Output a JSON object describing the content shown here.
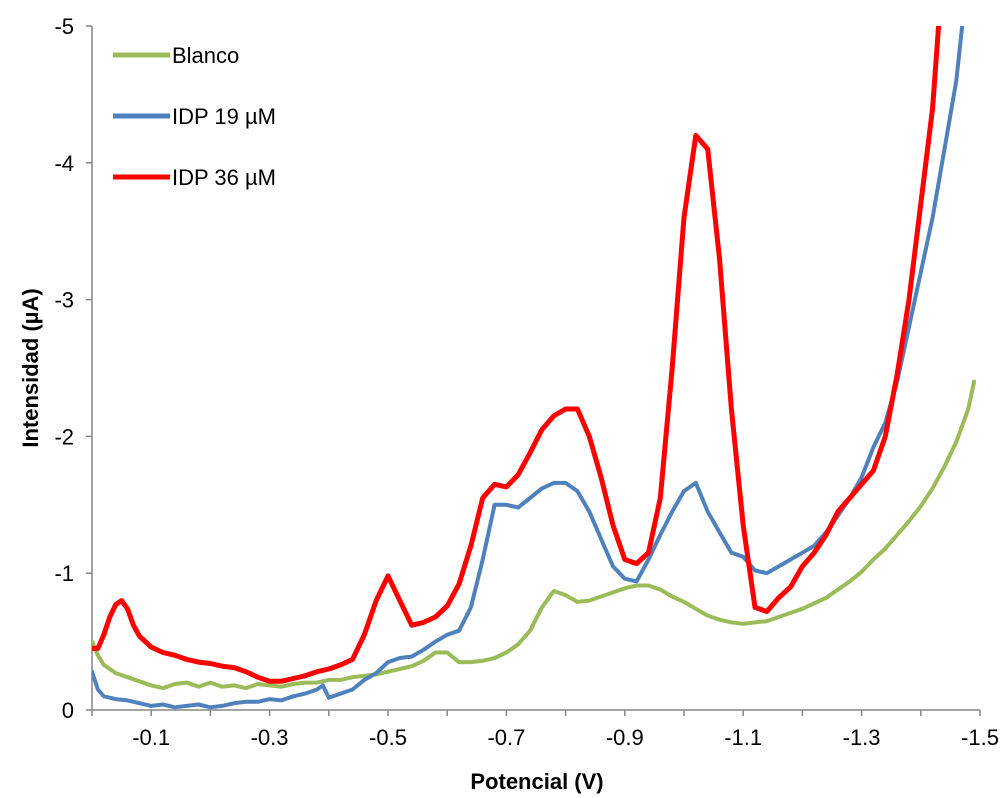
{
  "chart_data": {
    "type": "line",
    "title": "",
    "xlabel": "Potencial (V)",
    "ylabel": "Intensidad (µA)",
    "xlim": [
      0,
      -1.5
    ],
    "ylim": [
      0,
      -5
    ],
    "x_reversed": true,
    "y_reversed": true,
    "xticks": [
      {
        "value": -0.1,
        "label": "-0.1"
      },
      {
        "value": -0.3,
        "label": "-0.3"
      },
      {
        "value": -0.5,
        "label": "-0.5"
      },
      {
        "value": -0.7,
        "label": "-0.7"
      },
      {
        "value": -0.9,
        "label": "-0.9"
      },
      {
        "value": -1.1,
        "label": "-1.1"
      },
      {
        "value": -1.3,
        "label": "-1.3"
      },
      {
        "value": -1.5,
        "label": "-1.5"
      }
    ],
    "yticks": [
      {
        "value": 0,
        "label": "0"
      },
      {
        "value": -1,
        "label": "-1"
      },
      {
        "value": -2,
        "label": "-2"
      },
      {
        "value": -3,
        "label": "-3"
      },
      {
        "value": -4,
        "label": "-4"
      },
      {
        "value": -5,
        "label": "-5"
      }
    ],
    "grid": false,
    "legend_position": "top-left",
    "series": [
      {
        "name": "Blanco",
        "color": "#9bbb59",
        "points": [
          [
            0.0,
            -0.5
          ],
          [
            -0.01,
            -0.4
          ],
          [
            -0.02,
            -0.33
          ],
          [
            -0.04,
            -0.27
          ],
          [
            -0.06,
            -0.24
          ],
          [
            -0.08,
            -0.21
          ],
          [
            -0.1,
            -0.18
          ],
          [
            -0.12,
            -0.16
          ],
          [
            -0.14,
            -0.19
          ],
          [
            -0.16,
            -0.2
          ],
          [
            -0.18,
            -0.17
          ],
          [
            -0.2,
            -0.2
          ],
          [
            -0.22,
            -0.17
          ],
          [
            -0.24,
            -0.18
          ],
          [
            -0.26,
            -0.16
          ],
          [
            -0.28,
            -0.19
          ],
          [
            -0.3,
            -0.18
          ],
          [
            -0.32,
            -0.17
          ],
          [
            -0.34,
            -0.19
          ],
          [
            -0.36,
            -0.2
          ],
          [
            -0.38,
            -0.2
          ],
          [
            -0.4,
            -0.22
          ],
          [
            -0.42,
            -0.22
          ],
          [
            -0.44,
            -0.24
          ],
          [
            -0.46,
            -0.25
          ],
          [
            -0.48,
            -0.26
          ],
          [
            -0.5,
            -0.28
          ],
          [
            -0.52,
            -0.3
          ],
          [
            -0.54,
            -0.32
          ],
          [
            -0.56,
            -0.36
          ],
          [
            -0.58,
            -0.42
          ],
          [
            -0.6,
            -0.42
          ],
          [
            -0.62,
            -0.35
          ],
          [
            -0.64,
            -0.35
          ],
          [
            -0.66,
            -0.36
          ],
          [
            -0.68,
            -0.38
          ],
          [
            -0.7,
            -0.42
          ],
          [
            -0.72,
            -0.48
          ],
          [
            -0.74,
            -0.58
          ],
          [
            -0.76,
            -0.75
          ],
          [
            -0.78,
            -0.87
          ],
          [
            -0.8,
            -0.84
          ],
          [
            -0.82,
            -0.79
          ],
          [
            -0.84,
            -0.8
          ],
          [
            -0.86,
            -0.83
          ],
          [
            -0.88,
            -0.86
          ],
          [
            -0.9,
            -0.89
          ],
          [
            -0.92,
            -0.91
          ],
          [
            -0.94,
            -0.91
          ],
          [
            -0.96,
            -0.88
          ],
          [
            -0.98,
            -0.83
          ],
          [
            -1.0,
            -0.79
          ],
          [
            -1.02,
            -0.74
          ],
          [
            -1.04,
            -0.69
          ],
          [
            -1.06,
            -0.66
          ],
          [
            -1.08,
            -0.64
          ],
          [
            -1.1,
            -0.63
          ],
          [
            -1.12,
            -0.64
          ],
          [
            -1.14,
            -0.65
          ],
          [
            -1.16,
            -0.68
          ],
          [
            -1.18,
            -0.71
          ],
          [
            -1.2,
            -0.74
          ],
          [
            -1.22,
            -0.78
          ],
          [
            -1.24,
            -0.82
          ],
          [
            -1.26,
            -0.88
          ],
          [
            -1.28,
            -0.94
          ],
          [
            -1.3,
            -1.01
          ],
          [
            -1.32,
            -1.1
          ],
          [
            -1.34,
            -1.18
          ],
          [
            -1.36,
            -1.28
          ],
          [
            -1.38,
            -1.38
          ],
          [
            -1.4,
            -1.49
          ],
          [
            -1.42,
            -1.62
          ],
          [
            -1.44,
            -1.78
          ],
          [
            -1.46,
            -1.96
          ],
          [
            -1.48,
            -2.2
          ],
          [
            -1.49,
            -2.4
          ]
        ]
      },
      {
        "name": "IDP 19 µM",
        "color": "#4f81bd",
        "points": [
          [
            0.0,
            -0.28
          ],
          [
            -0.01,
            -0.15
          ],
          [
            -0.02,
            -0.1
          ],
          [
            -0.04,
            -0.08
          ],
          [
            -0.06,
            -0.07
          ],
          [
            -0.08,
            -0.05
          ],
          [
            -0.1,
            -0.03
          ],
          [
            -0.12,
            -0.04
          ],
          [
            -0.14,
            -0.02
          ],
          [
            -0.16,
            -0.03
          ],
          [
            -0.18,
            -0.04
          ],
          [
            -0.2,
            -0.02
          ],
          [
            -0.22,
            -0.03
          ],
          [
            -0.24,
            -0.05
          ],
          [
            -0.26,
            -0.06
          ],
          [
            -0.28,
            -0.06
          ],
          [
            -0.3,
            -0.08
          ],
          [
            -0.32,
            -0.07
          ],
          [
            -0.34,
            -0.1
          ],
          [
            -0.36,
            -0.12
          ],
          [
            -0.38,
            -0.15
          ],
          [
            -0.39,
            -0.18
          ],
          [
            -0.4,
            -0.09
          ],
          [
            -0.42,
            -0.12
          ],
          [
            -0.44,
            -0.15
          ],
          [
            -0.46,
            -0.22
          ],
          [
            -0.48,
            -0.27
          ],
          [
            -0.5,
            -0.35
          ],
          [
            -0.52,
            -0.38
          ],
          [
            -0.54,
            -0.39
          ],
          [
            -0.56,
            -0.44
          ],
          [
            -0.58,
            -0.5
          ],
          [
            -0.6,
            -0.55
          ],
          [
            -0.62,
            -0.58
          ],
          [
            -0.64,
            -0.75
          ],
          [
            -0.66,
            -1.1
          ],
          [
            -0.68,
            -1.5
          ],
          [
            -0.7,
            -1.5
          ],
          [
            -0.72,
            -1.48
          ],
          [
            -0.74,
            -1.55
          ],
          [
            -0.76,
            -1.62
          ],
          [
            -0.78,
            -1.66
          ],
          [
            -0.8,
            -1.66
          ],
          [
            -0.82,
            -1.6
          ],
          [
            -0.84,
            -1.45
          ],
          [
            -0.86,
            -1.25
          ],
          [
            -0.88,
            -1.05
          ],
          [
            -0.9,
            -0.96
          ],
          [
            -0.92,
            -0.94
          ],
          [
            -0.94,
            -1.1
          ],
          [
            -0.96,
            -1.28
          ],
          [
            -0.98,
            -1.45
          ],
          [
            -1.0,
            -1.6
          ],
          [
            -1.02,
            -1.66
          ],
          [
            -1.04,
            -1.45
          ],
          [
            -1.06,
            -1.3
          ],
          [
            -1.08,
            -1.15
          ],
          [
            -1.1,
            -1.12
          ],
          [
            -1.12,
            -1.02
          ],
          [
            -1.14,
            -1.0
          ],
          [
            -1.16,
            -1.05
          ],
          [
            -1.18,
            -1.1
          ],
          [
            -1.2,
            -1.15
          ],
          [
            -1.22,
            -1.2
          ],
          [
            -1.24,
            -1.3
          ],
          [
            -1.26,
            -1.42
          ],
          [
            -1.28,
            -1.55
          ],
          [
            -1.3,
            -1.7
          ],
          [
            -1.32,
            -1.92
          ],
          [
            -1.34,
            -2.1
          ],
          [
            -1.36,
            -2.4
          ],
          [
            -1.38,
            -2.8
          ],
          [
            -1.4,
            -3.2
          ],
          [
            -1.42,
            -3.6
          ],
          [
            -1.44,
            -4.1
          ],
          [
            -1.46,
            -4.6
          ],
          [
            -1.47,
            -5.0
          ]
        ]
      },
      {
        "name": "IDP 36 µM",
        "color": "#ff0000",
        "points": [
          [
            0.0,
            -0.45
          ],
          [
            -0.01,
            -0.45
          ],
          [
            -0.02,
            -0.55
          ],
          [
            -0.03,
            -0.68
          ],
          [
            -0.04,
            -0.77
          ],
          [
            -0.05,
            -0.8
          ],
          [
            -0.06,
            -0.74
          ],
          [
            -0.07,
            -0.62
          ],
          [
            -0.08,
            -0.54
          ],
          [
            -0.1,
            -0.46
          ],
          [
            -0.12,
            -0.42
          ],
          [
            -0.14,
            -0.4
          ],
          [
            -0.16,
            -0.37
          ],
          [
            -0.18,
            -0.35
          ],
          [
            -0.2,
            -0.34
          ],
          [
            -0.22,
            -0.32
          ],
          [
            -0.24,
            -0.31
          ],
          [
            -0.26,
            -0.28
          ],
          [
            -0.28,
            -0.24
          ],
          [
            -0.3,
            -0.21
          ],
          [
            -0.32,
            -0.21
          ],
          [
            -0.34,
            -0.23
          ],
          [
            -0.36,
            -0.25
          ],
          [
            -0.38,
            -0.28
          ],
          [
            -0.4,
            -0.3
          ],
          [
            -0.42,
            -0.33
          ],
          [
            -0.44,
            -0.37
          ],
          [
            -0.46,
            -0.55
          ],
          [
            -0.48,
            -0.8
          ],
          [
            -0.5,
            -0.98
          ],
          [
            -0.52,
            -0.8
          ],
          [
            -0.54,
            -0.62
          ],
          [
            -0.56,
            -0.64
          ],
          [
            -0.58,
            -0.68
          ],
          [
            -0.6,
            -0.76
          ],
          [
            -0.62,
            -0.92
          ],
          [
            -0.64,
            -1.2
          ],
          [
            -0.66,
            -1.55
          ],
          [
            -0.68,
            -1.65
          ],
          [
            -0.7,
            -1.63
          ],
          [
            -0.72,
            -1.72
          ],
          [
            -0.74,
            -1.88
          ],
          [
            -0.76,
            -2.05
          ],
          [
            -0.78,
            -2.15
          ],
          [
            -0.8,
            -2.2
          ],
          [
            -0.82,
            -2.2
          ],
          [
            -0.84,
            -2.0
          ],
          [
            -0.86,
            -1.7
          ],
          [
            -0.88,
            -1.35
          ],
          [
            -0.9,
            -1.1
          ],
          [
            -0.92,
            -1.07
          ],
          [
            -0.94,
            -1.15
          ],
          [
            -0.96,
            -1.55
          ],
          [
            -0.98,
            -2.5
          ],
          [
            -1.0,
            -3.6
          ],
          [
            -1.02,
            -4.2
          ],
          [
            -1.04,
            -4.1
          ],
          [
            -1.06,
            -3.3
          ],
          [
            -1.08,
            -2.2
          ],
          [
            -1.1,
            -1.35
          ],
          [
            -1.12,
            -0.75
          ],
          [
            -1.14,
            -0.72
          ],
          [
            -1.16,
            -0.82
          ],
          [
            -1.18,
            -0.9
          ],
          [
            -1.2,
            -1.05
          ],
          [
            -1.22,
            -1.15
          ],
          [
            -1.24,
            -1.28
          ],
          [
            -1.26,
            -1.45
          ],
          [
            -1.28,
            -1.55
          ],
          [
            -1.3,
            -1.65
          ],
          [
            -1.32,
            -1.75
          ],
          [
            -1.34,
            -2.0
          ],
          [
            -1.36,
            -2.45
          ],
          [
            -1.38,
            -3.0
          ],
          [
            -1.4,
            -3.7
          ],
          [
            -1.42,
            -4.4
          ],
          [
            -1.43,
            -5.0
          ]
        ]
      }
    ]
  }
}
